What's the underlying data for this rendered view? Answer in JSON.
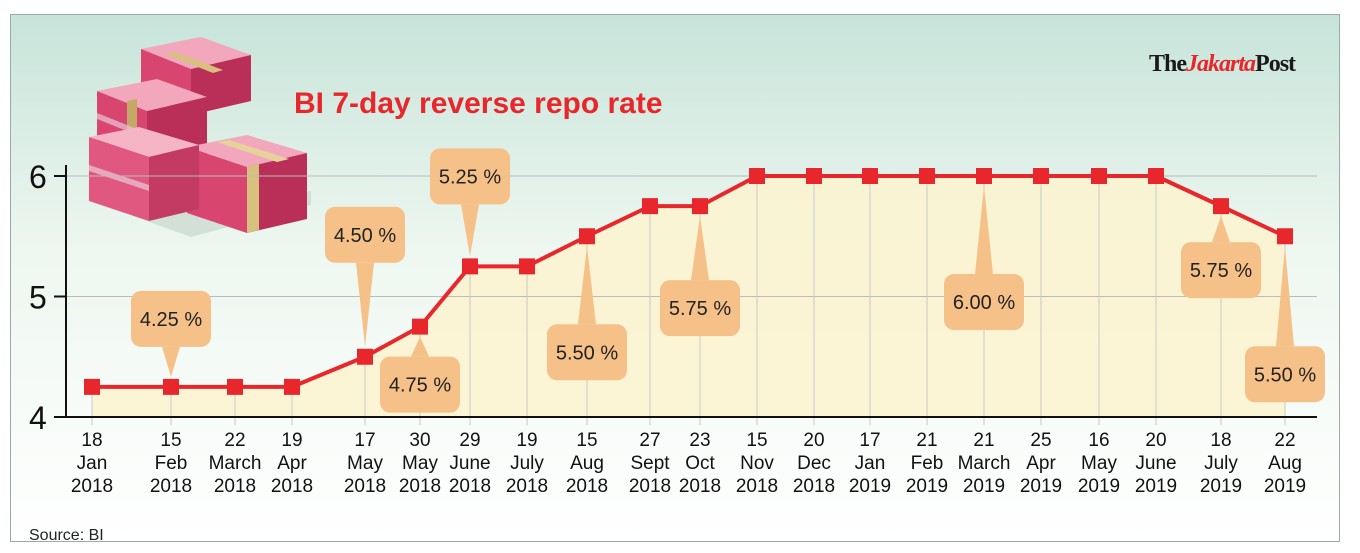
{
  "title": "BI 7-day reverse repo rate",
  "brand": {
    "part1": "The",
    "part2": "Jakarta",
    "part3": "Post"
  },
  "source": "Source: BI",
  "colors": {
    "line": "#e8272c",
    "marker": "#e8272c",
    "callout": "#f6c189",
    "axis": "#111111",
    "title": "#e8272c"
  },
  "decoration": "stacked-rupiah-banknotes-icon",
  "chart_data": {
    "type": "line",
    "title": "BI 7-day reverse repo rate",
    "xlabel": "",
    "ylabel": "",
    "ylim": [
      4,
      6
    ],
    "yticks": [
      4,
      5,
      6
    ],
    "grid": "horizontal at 5 and 6, vertical dropline per point",
    "categories": [
      {
        "day": "18",
        "month": "Jan",
        "year": "2018"
      },
      {
        "day": "15",
        "month": "Feb",
        "year": "2018"
      },
      {
        "day": "22",
        "month": "March",
        "year": "2018"
      },
      {
        "day": "19",
        "month": "Apr",
        "year": "2018"
      },
      {
        "day": "17",
        "month": "May",
        "year": "2018"
      },
      {
        "day": "30",
        "month": "May",
        "year": "2018"
      },
      {
        "day": "29",
        "month": "June",
        "year": "2018"
      },
      {
        "day": "19",
        "month": "July",
        "year": "2018"
      },
      {
        "day": "15",
        "month": "Aug",
        "year": "2018"
      },
      {
        "day": "27",
        "month": "Sept",
        "year": "2018"
      },
      {
        "day": "23",
        "month": "Oct",
        "year": "2018"
      },
      {
        "day": "15",
        "month": "Nov",
        "year": "2018"
      },
      {
        "day": "20",
        "month": "Dec",
        "year": "2018"
      },
      {
        "day": "17",
        "month": "Jan",
        "year": "2019"
      },
      {
        "day": "21",
        "month": "Feb",
        "year": "2019"
      },
      {
        "day": "21",
        "month": "March",
        "year": "2019"
      },
      {
        "day": "25",
        "month": "Apr",
        "year": "2019"
      },
      {
        "day": "16",
        "month": "May",
        "year": "2019"
      },
      {
        "day": "20",
        "month": "June",
        "year": "2019"
      },
      {
        "day": "18",
        "month": "July",
        "year": "2019"
      },
      {
        "day": "22",
        "month": "Aug",
        "year": "2019"
      }
    ],
    "values": [
      4.25,
      4.25,
      4.25,
      4.25,
      4.5,
      4.75,
      5.25,
      5.25,
      5.5,
      5.75,
      5.75,
      6.0,
      6.0,
      6.0,
      6.0,
      6.0,
      6.0,
      6.0,
      6.0,
      5.75,
      5.5
    ],
    "annotations": [
      {
        "index": 1,
        "text": "4.25 %",
        "position": "above"
      },
      {
        "index": 4,
        "text": "4.50 %",
        "position": "above"
      },
      {
        "index": 5,
        "text": "4.75 %",
        "position": "below"
      },
      {
        "index": 6,
        "text": "5.25 %",
        "position": "above"
      },
      {
        "index": 8,
        "text": "5.50 %",
        "position": "below"
      },
      {
        "index": 10,
        "text": "5.75 %",
        "position": "below"
      },
      {
        "index": 15,
        "text": "6.00 %",
        "position": "below"
      },
      {
        "index": 19,
        "text": "5.75 %",
        "position": "below"
      },
      {
        "index": 20,
        "text": "5.50 %",
        "position": "below"
      }
    ]
  }
}
